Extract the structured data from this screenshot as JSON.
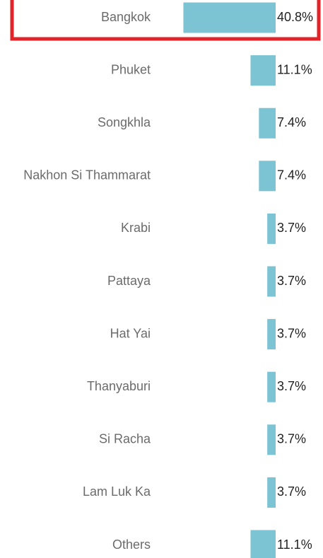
{
  "chart_data": {
    "type": "bar",
    "orientation": "horizontal",
    "categories": [
      "Bangkok",
      "Phuket",
      "Songkhla",
      "Nakhon Si Thammarat",
      "Krabi",
      "Pattaya",
      "Hat Yai",
      "Thanyaburi",
      "Si Racha",
      "Lam Luk Ka",
      "Others"
    ],
    "values": [
      40.8,
      11.1,
      7.4,
      7.4,
      3.7,
      3.7,
      3.7,
      3.7,
      3.7,
      3.7,
      11.1
    ],
    "value_labels": [
      "40.8%",
      "11.1%",
      "7.4%",
      "7.4%",
      "3.7%",
      "3.7%",
      "3.7%",
      "3.7%",
      "3.7%",
      "3.7%",
      "11.1%"
    ],
    "color": "#7cc3d3"
  }
}
